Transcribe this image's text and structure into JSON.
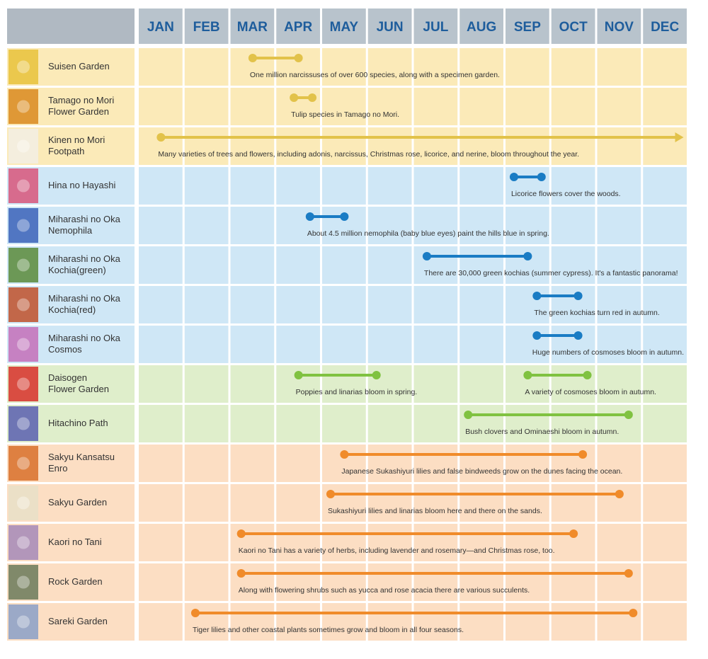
{
  "months": [
    "JAN",
    "FEB",
    "MAR",
    "APR",
    "MAY",
    "JUN",
    "JUL",
    "AUG",
    "SEP",
    "OCT",
    "NOV",
    "DEC"
  ],
  "rows": [
    {
      "name": [
        "Suisen Garden"
      ],
      "color": "#e2c24a",
      "background": "#fbeab8",
      "periods": [
        {
          "start": 3.5,
          "end": 4.5,
          "note": "One million narcissuses of over 600 species, along with a specimen garden."
        }
      ]
    },
    {
      "name": [
        "Tamago no Mori",
        "Flower Garden"
      ],
      "color": "#e2c24a",
      "background": "#fbeab8",
      "periods": [
        {
          "start": 4.4,
          "end": 4.8,
          "note": "Tulip species in Tamago no Mori."
        }
      ]
    },
    {
      "name": [
        "Kinen no Mori",
        "Footpath"
      ],
      "color": "#e2c24a",
      "background": "#fbeab8",
      "arrow": true,
      "periods": [
        {
          "start": 1.5,
          "end": 12.9,
          "note": "Many varieties of trees and flowers, including adonis, narcissus, Christmas rose, licorice, and nerine, bloom throughout the year."
        }
      ]
    },
    {
      "name": [
        "Hina no Hayashi"
      ],
      "color": "#1a7cc4",
      "background": "#cfe7f6",
      "periods": [
        {
          "start": 9.2,
          "end": 9.8,
          "note": "Licorice flowers cover the woods."
        }
      ]
    },
    {
      "name": [
        "Miharashi no Oka",
        "Nemophila"
      ],
      "color": "#1a7cc4",
      "background": "#cfe7f6",
      "periods": [
        {
          "start": 4.75,
          "end": 5.5,
          "note": "About 4.5 million nemophila (baby blue eyes) paint the hills blue in spring."
        }
      ]
    },
    {
      "name": [
        "Miharashi no Oka",
        "Kochia(green)"
      ],
      "color": "#1a7cc4",
      "background": "#cfe7f6",
      "periods": [
        {
          "start": 7.3,
          "end": 9.5,
          "note": "There are 30,000 green kochias (summer cypress). It's a fantastic panorama!"
        }
      ]
    },
    {
      "name": [
        "Miharashi no Oka",
        "Kochia(red)"
      ],
      "color": "#1a7cc4",
      "background": "#cfe7f6",
      "periods": [
        {
          "start": 9.7,
          "end": 10.6,
          "note": "The green kochias turn red in autumn."
        }
      ]
    },
    {
      "name": [
        "Miharashi no Oka",
        "Cosmos"
      ],
      "color": "#1a7cc4",
      "background": "#cfe7f6",
      "periods": [
        {
          "start": 9.7,
          "end": 10.6,
          "note": "Huge numbers of cosmoses bloom in autumn."
        }
      ]
    },
    {
      "name": [
        "Daisogen",
        "Flower Garden"
      ],
      "color": "#80c241",
      "background": "#dfeecb",
      "periods": [
        {
          "start": 4.5,
          "end": 6.2,
          "note": "Poppies and linarias bloom in spring."
        },
        {
          "start": 9.5,
          "end": 10.8,
          "note": "A variety of cosmoses bloom in autumn."
        }
      ]
    },
    {
      "name": [
        "Hitachino Path"
      ],
      "color": "#80c241",
      "background": "#dfeecb",
      "periods": [
        {
          "start": 8.2,
          "end": 11.7,
          "note": "Bush clovers and Ominaeshi bloom in autumn."
        }
      ]
    },
    {
      "name": [
        "Sakyu Kansatsu",
        " Enro"
      ],
      "color": "#f08b2a",
      "background": "#fcdec3",
      "periods": [
        {
          "start": 5.5,
          "end": 10.7,
          "note": "Japanese Sukashiyuri lilies and false bindweeds grow on the dunes facing the ocean."
        }
      ]
    },
    {
      "name": [
        "Sakyu Garden"
      ],
      "color": "#f08b2a",
      "background": "#fcdec3",
      "periods": [
        {
          "start": 5.2,
          "end": 11.5,
          "note": "Sukashiyuri lilies and linarias bloom here and there on the sands."
        }
      ]
    },
    {
      "name": [
        "Kaori no Tani"
      ],
      "color": "#f08b2a",
      "background": "#fcdec3",
      "periods": [
        {
          "start": 3.25,
          "end": 10.5,
          "note": "Kaori no Tani has a variety of herbs, including lavender and rosemary—and Christmas rose, too."
        }
      ]
    },
    {
      "name": [
        "Rock Garden"
      ],
      "color": "#f08b2a",
      "background": "#fcdec3",
      "periods": [
        {
          "start": 3.25,
          "end": 11.7,
          "note": "Along with flowering shrubs such as yucca and rose acacia there are various succulents."
        }
      ]
    },
    {
      "name": [
        "Sareki Garden"
      ],
      "color": "#f08b2a",
      "background": "#fcdec3",
      "periods": [
        {
          "start": 2.25,
          "end": 11.8,
          "note": "Tiger lilies and other coastal plants sometimes grow and bloom in all four seasons."
        }
      ]
    }
  ]
}
